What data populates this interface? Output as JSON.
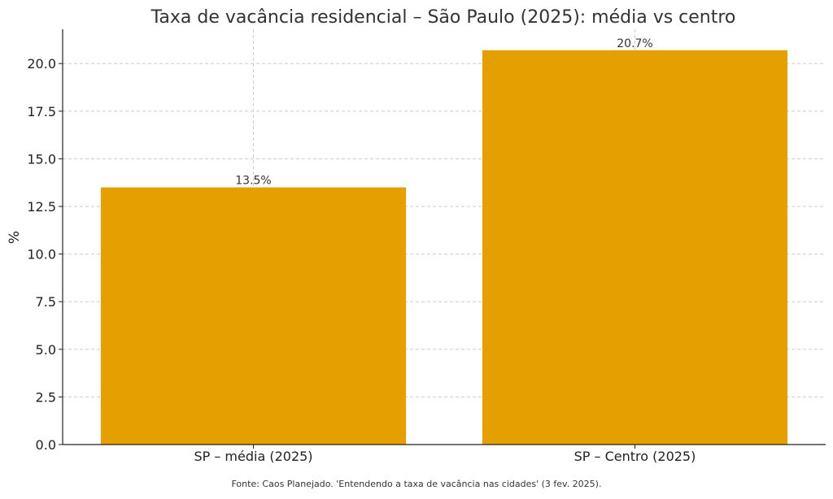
{
  "chart_data": {
    "type": "bar",
    "title": "Taxa de vacância residencial – São Paulo (2025): média vs centro",
    "xlabel": "",
    "ylabel": "%",
    "categories": [
      "SP – média (2025)",
      "SP – Centro (2025)"
    ],
    "values": [
      13.5,
      20.7
    ],
    "data_labels": [
      "13.5%",
      "20.7%"
    ],
    "ylim": [
      0,
      21.8
    ],
    "yticks": [
      0.0,
      2.5,
      5.0,
      7.5,
      10.0,
      12.5,
      15.0,
      17.5,
      20.0
    ],
    "ytick_labels": [
      "0.0",
      "2.5",
      "5.0",
      "7.5",
      "10.0",
      "12.5",
      "15.0",
      "17.5",
      "20.0"
    ],
    "grid": true,
    "bar_color": "#E5A000",
    "source_note": "Fonte: Caos Planejado. 'Entendendo a taxa de vacância nas cidades' (3 fev. 2025)."
  }
}
